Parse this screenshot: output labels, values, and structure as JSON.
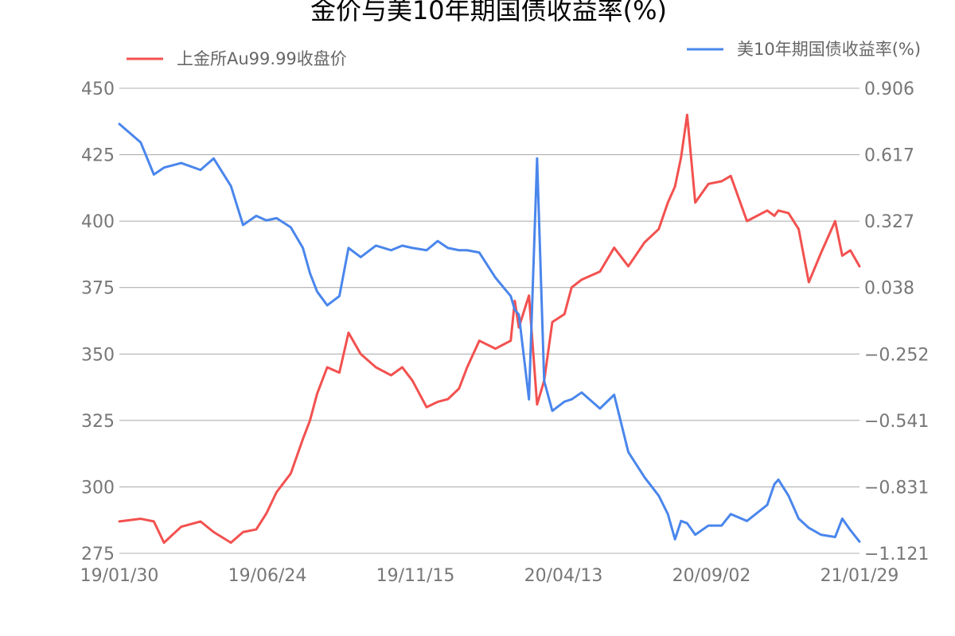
{
  "chart_data": {
    "type": "line",
    "title": "金价与美10年期国债收益率(%)",
    "x_tick_labels": [
      "19/01/30",
      "19/06/24",
      "19/11/15",
      "20/04/13",
      "20/09/02",
      "21/01/29"
    ],
    "left_axis": {
      "min": 275,
      "max": 450,
      "tick_labels": [
        "450",
        "425",
        "400",
        "375",
        "350",
        "325",
        "300",
        "275"
      ]
    },
    "right_axis": {
      "min": -1.121,
      "max": 0.906,
      "tick_labels": [
        "0.906",
        "0.617",
        "0.327",
        "0.038",
        "−0.252",
        "−0.541",
        "−0.831",
        "−1.121"
      ]
    },
    "grid": true,
    "legend": [
      {
        "label": "上金所Au99.99收盘价",
        "placement": "top-left"
      },
      {
        "label": "美10年期国债收益率(%)",
        "placement": "top-right"
      }
    ],
    "series": [
      {
        "name": "上金所Au99.99收盘价",
        "axis": "left",
        "color": "#f2514f",
        "x": [
          "2019-01-30",
          "2019-02-20",
          "2019-03-05",
          "2019-03-15",
          "2019-04-01",
          "2019-04-20",
          "2019-05-03",
          "2019-05-20",
          "2019-06-01",
          "2019-06-14",
          "2019-06-24",
          "2019-07-04",
          "2019-07-18",
          "2019-07-30",
          "2019-08-06",
          "2019-08-13",
          "2019-08-23",
          "2019-09-04",
          "2019-09-13",
          "2019-09-25",
          "2019-10-10",
          "2019-10-25",
          "2019-11-05",
          "2019-11-15",
          "2019-11-29",
          "2019-12-10",
          "2019-12-20",
          "2019-12-31",
          "2020-01-08",
          "2020-01-20",
          "2020-02-05",
          "2020-02-20",
          "2020-02-24",
          "2020-02-28",
          "2020-03-09",
          "2020-03-17",
          "2020-03-24",
          "2020-04-01",
          "2020-04-13",
          "2020-04-20",
          "2020-04-30",
          "2020-05-18",
          "2020-06-01",
          "2020-06-15",
          "2020-07-01",
          "2020-07-15",
          "2020-07-24",
          "2020-07-31",
          "2020-08-06",
          "2020-08-12",
          "2020-08-20",
          "2020-09-02",
          "2020-09-15",
          "2020-09-24",
          "2020-10-10",
          "2020-10-30",
          "2020-11-06",
          "2020-11-10",
          "2020-11-20",
          "2020-11-30",
          "2020-12-10",
          "2020-12-22",
          "2021-01-05",
          "2021-01-12",
          "2021-01-20",
          "2021-01-29"
        ],
        "y": [
          287,
          288,
          287,
          279,
          285,
          287,
          283,
          279,
          283,
          284,
          290,
          298,
          305,
          318,
          325,
          335,
          345,
          343,
          358,
          350,
          345,
          342,
          345,
          340,
          330,
          332,
          333,
          337,
          345,
          355,
          352,
          355,
          370,
          360,
          372,
          331,
          340,
          362,
          365,
          375,
          378,
          381,
          390,
          383,
          392,
          397,
          407,
          413,
          424,
          440,
          407,
          414,
          415,
          417,
          400,
          404,
          402,
          404,
          403,
          397,
          377,
          388,
          400,
          387,
          389,
          383
        ]
      },
      {
        "name": "美10年期国债收益率(%)",
        "axis": "right",
        "color": "#4a86ec",
        "x": [
          "2019-01-30",
          "2019-02-20",
          "2019-03-05",
          "2019-03-15",
          "2019-04-01",
          "2019-04-20",
          "2019-05-03",
          "2019-05-20",
          "2019-06-01",
          "2019-06-14",
          "2019-06-24",
          "2019-07-04",
          "2019-07-18",
          "2019-07-30",
          "2019-08-06",
          "2019-08-13",
          "2019-08-23",
          "2019-09-04",
          "2019-09-13",
          "2019-09-25",
          "2019-10-10",
          "2019-10-25",
          "2019-11-05",
          "2019-11-15",
          "2019-11-29",
          "2019-12-10",
          "2019-12-20",
          "2019-12-31",
          "2020-01-08",
          "2020-01-20",
          "2020-02-05",
          "2020-02-20",
          "2020-02-24",
          "2020-02-28",
          "2020-03-09",
          "2020-03-17",
          "2020-03-24",
          "2020-04-01",
          "2020-04-13",
          "2020-04-20",
          "2020-04-30",
          "2020-05-18",
          "2020-06-01",
          "2020-06-15",
          "2020-07-01",
          "2020-07-15",
          "2020-07-24",
          "2020-07-31",
          "2020-08-06",
          "2020-08-12",
          "2020-08-20",
          "2020-09-02",
          "2020-09-15",
          "2020-09-24",
          "2020-10-10",
          "2020-10-30",
          "2020-11-06",
          "2020-11-10",
          "2020-11-20",
          "2020-11-30",
          "2020-12-10",
          "2020-12-22",
          "2021-01-05",
          "2021-01-12",
          "2021-01-20",
          "2021-01-29"
        ],
        "y": [
          0.75,
          0.67,
          0.53,
          0.56,
          0.58,
          0.55,
          0.6,
          0.48,
          0.31,
          0.35,
          0.33,
          0.34,
          0.3,
          0.21,
          0.1,
          0.02,
          -0.04,
          0.0,
          0.21,
          0.17,
          0.22,
          0.2,
          0.22,
          0.21,
          0.2,
          0.24,
          0.21,
          0.2,
          0.2,
          0.19,
          0.08,
          0.0,
          -0.06,
          -0.08,
          -0.45,
          0.6,
          -0.37,
          -0.5,
          -0.46,
          -0.45,
          -0.42,
          -0.49,
          -0.43,
          -0.68,
          -0.79,
          -0.87,
          -0.95,
          -1.06,
          -0.98,
          -0.99,
          -1.04,
          -1.0,
          -1.0,
          -0.95,
          -0.98,
          -0.91,
          -0.82,
          -0.8,
          -0.87,
          -0.97,
          -1.01,
          -1.04,
          -1.05,
          -0.97,
          -1.02,
          -1.07
        ]
      }
    ]
  }
}
